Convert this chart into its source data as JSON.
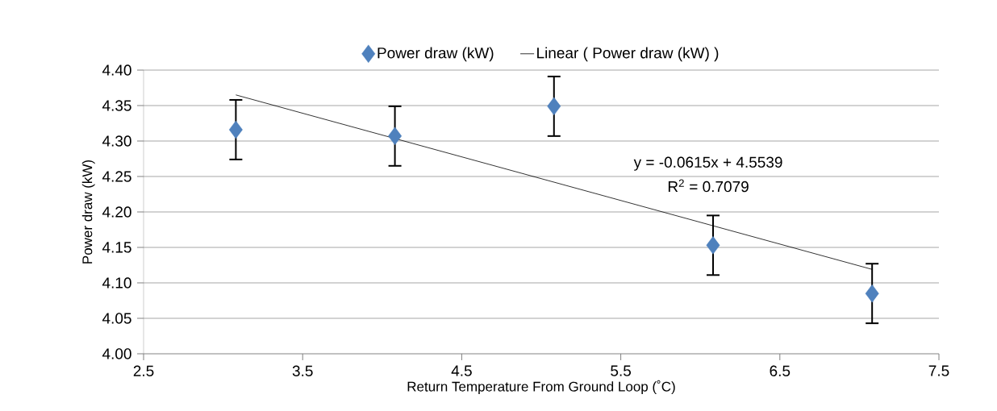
{
  "chart_data": {
    "type": "scatter",
    "xlabel": "Return Temperature From Ground Loop (˚C)",
    "ylabel": "Power draw (kW)",
    "xlim": [
      2.5,
      7.5
    ],
    "xticks": [
      2.5,
      3.5,
      4.5,
      5.5,
      6.5,
      7.5
    ],
    "ylim": [
      4.0,
      4.4
    ],
    "yticks": [
      {
        "value": 4.0,
        "label": "4.00"
      },
      {
        "value": 4.05,
        "label": "4.05"
      },
      {
        "value": 4.1,
        "label": "4.10"
      },
      {
        "value": 4.15,
        "label": "4.15"
      },
      {
        "value": 4.2,
        "label": "4.20"
      },
      {
        "value": 4.25,
        "label": "4.25"
      },
      {
        "value": 4.3,
        "label": "4.30"
      },
      {
        "value": 4.35,
        "label": "4.35"
      },
      {
        "value": 4.4,
        "label": "4.40"
      }
    ],
    "grid": "y",
    "legend": "top",
    "marker": "diamond",
    "series": [
      {
        "name": "Power draw (kW)",
        "color": "#4f81bd",
        "x": [
          3.08,
          4.08,
          5.08,
          6.08,
          7.08
        ],
        "values": [
          4.316,
          4.307,
          4.349,
          4.153,
          4.085
        ],
        "errors": [
          0.042,
          0.042,
          0.042,
          0.042,
          0.042
        ]
      },
      {
        "name": "Linear ( Power draw (kW) )",
        "type": "line",
        "marker": "none",
        "color": "#000000",
        "x": [
          3.08,
          7.08
        ],
        "values": [
          4.365,
          4.119
        ]
      }
    ],
    "annotations": [
      "y = -0.0615x + 4.5539",
      "R$^{2}$ = 0.7079"
    ]
  }
}
